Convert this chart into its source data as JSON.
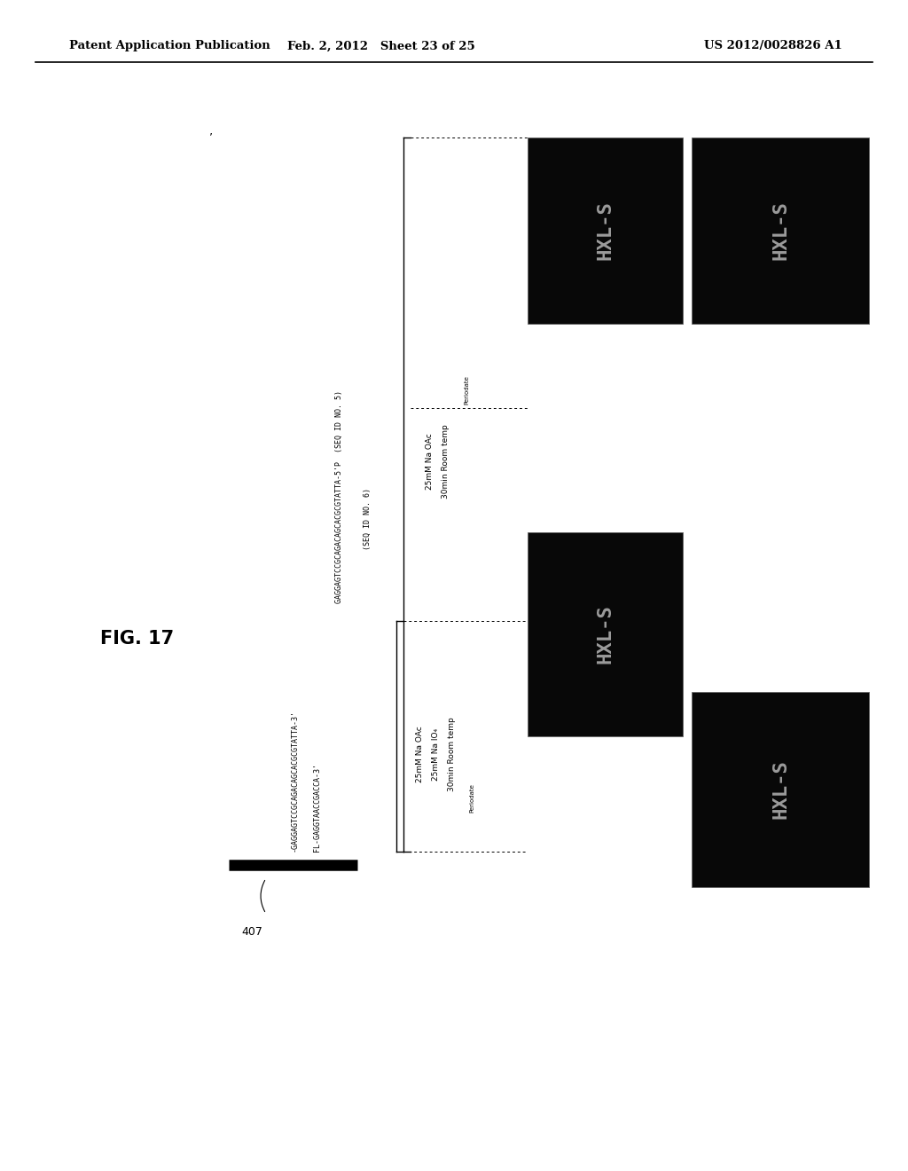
{
  "bg_color": "#ffffff",
  "header_left": "Patent Application Publication",
  "header_mid": "Feb. 2, 2012   Sheet 23 of 25",
  "header_right": "US 2012/0028826 A1",
  "fig_label": "FIG. 17",
  "seq1": "GAGGAGTCCGCAGACAGCACGCGTATTA-5'P  (SEQ ID NO. 5)",
  "seq2": "(SEQ ID NO. 6)",
  "seq3": "-GAGGAGTCCGCAGACAGCACGCGTATTA-3'",
  "seq4": "FL-GAGGTAACCGACCA-3'",
  "label_407": "407",
  "cond_left_1": "25mM Na OAc",
  "cond_left_2": "25mM Na IO₄",
  "cond_left_3": "30min Room temp",
  "cond_right_1": "25mM Na OAc",
  "cond_right_2": "30min Room temp",
  "bracket_label": "Periodate",
  "panel_color": "#080808",
  "note_mark": "’"
}
